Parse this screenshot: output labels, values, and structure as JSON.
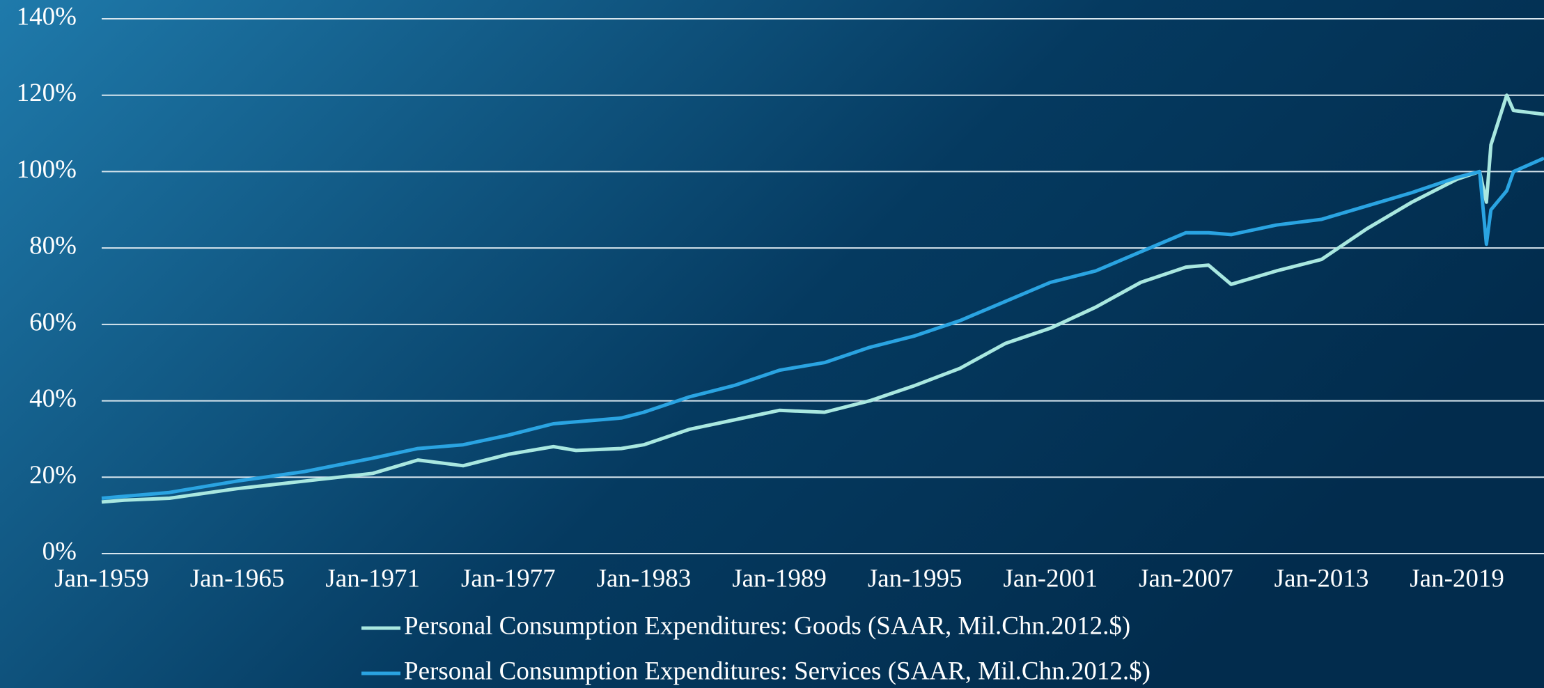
{
  "chart_data": {
    "type": "line",
    "x": [
      1959,
      1960,
      1962,
      1965,
      1968,
      1971,
      1973,
      1975,
      1977,
      1979,
      1980,
      1982,
      1983,
      1985,
      1987,
      1989,
      1991,
      1993,
      1995,
      1997,
      1999,
      2001,
      2003,
      2005,
      2007,
      2008,
      2009,
      2011,
      2013,
      2015,
      2017,
      2019,
      2020.0,
      2020.3,
      2020.5,
      2021.2,
      2021.5,
      2022.85
    ],
    "series": [
      {
        "name": "Personal Consumption Expenditures: Goods (SAAR, Mil.Chn.2012.$)",
        "color": "#a9e8e0",
        "values": [
          13.5,
          14,
          14.5,
          17,
          19,
          21,
          24.5,
          23,
          26,
          28,
          27,
          27.5,
          28.5,
          32.5,
          35,
          37.5,
          37,
          40,
          44,
          48.5,
          55,
          59,
          64.5,
          71,
          75,
          75.5,
          70.5,
          74,
          77,
          85,
          92,
          98,
          100,
          92,
          107,
          120,
          116,
          115
        ]
      },
      {
        "name": "Personal Consumption Expenditures: Services (SAAR, Mil.Chn.2012.$)",
        "color": "#2aa4e2",
        "values": [
          14.5,
          15,
          16,
          19,
          21.5,
          25,
          27.5,
          28.5,
          31,
          34,
          34.5,
          35.5,
          37,
          41,
          44,
          48,
          50,
          54,
          57,
          61,
          66,
          71,
          74,
          79,
          84,
          84,
          83.5,
          86,
          87.5,
          91,
          94.5,
          98.5,
          100,
          81,
          90,
          95,
          100,
          103.5
        ]
      }
    ],
    "xlim": [
      1959,
      2022.85
    ],
    "xticks": [
      {
        "value": 1959,
        "label": "Jan-1959"
      },
      {
        "value": 1965,
        "label": "Jan-1965"
      },
      {
        "value": 1971,
        "label": "Jan-1971"
      },
      {
        "value": 1977,
        "label": "Jan-1977"
      },
      {
        "value": 1983,
        "label": "Jan-1983"
      },
      {
        "value": 1989,
        "label": "Jan-1989"
      },
      {
        "value": 1995,
        "label": "Jan-1995"
      },
      {
        "value": 2001,
        "label": "Jan-2001"
      },
      {
        "value": 2007,
        "label": "Jan-2007"
      },
      {
        "value": 2013,
        "label": "Jan-2013"
      },
      {
        "value": 2019,
        "label": "Jan-2019"
      }
    ],
    "ylim": [
      0,
      140
    ],
    "yticks": [
      {
        "value": 0,
        "label": "0%"
      },
      {
        "value": 20,
        "label": "20%"
      },
      {
        "value": 40,
        "label": "40%"
      },
      {
        "value": 60,
        "label": "60%"
      },
      {
        "value": 80,
        "label": "80%"
      },
      {
        "value": 100,
        "label": "100%"
      },
      {
        "value": 120,
        "label": "120%"
      },
      {
        "value": 140,
        "label": "140%"
      }
    ],
    "grid": true
  }
}
